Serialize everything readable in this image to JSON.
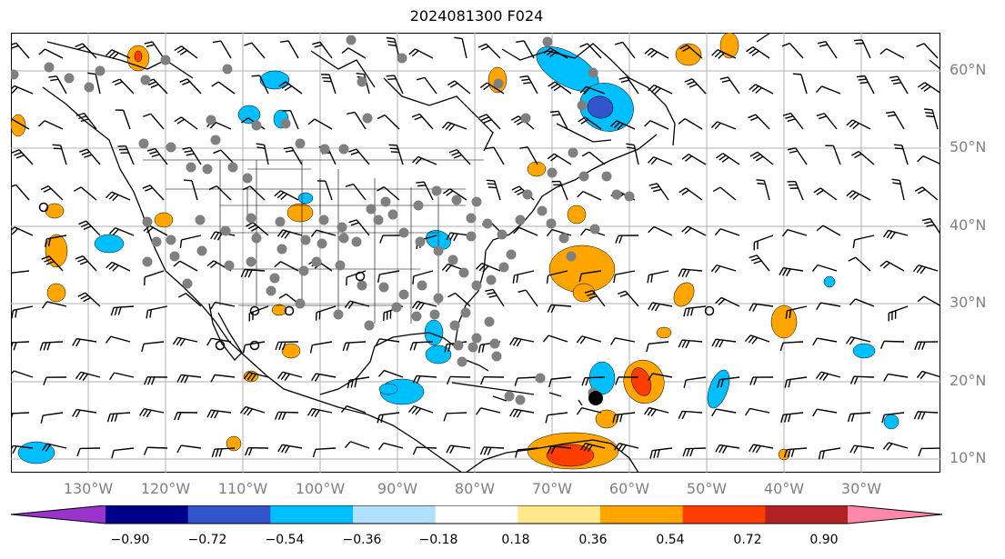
{
  "title": "2024081300 F024",
  "lat_labels": [
    "60°N",
    "50°N",
    "40°N",
    "30°N",
    "20°N",
    "10°N"
  ],
  "lon_labels": [
    "130°W",
    "120°W",
    "110°W",
    "100°W",
    "90°W",
    "80°W",
    "70°W",
    "60°W",
    "50°W",
    "40°W",
    "30°W"
  ],
  "colorbar": {
    "ticks": [
      "−0.90",
      "−0.72",
      "−0.54",
      "−0.36",
      "−0.18",
      "0.18",
      "0.36",
      "0.54",
      "0.72",
      "0.90"
    ],
    "colors": [
      "#9933cc",
      "#00008b",
      "#3355cc",
      "#00bfff",
      "#b0e0ff",
      "#ffffff",
      "#ffe88a",
      "#ffa500",
      "#ff3d00",
      "#b22222",
      "#ff88aa"
    ]
  },
  "colors": {
    "orange": "#ffa500",
    "red": "#ff3d00",
    "cyan": "#00bfff",
    "blue": "#3355cc",
    "grey_marker": "#808080",
    "storm_marker": "#000000"
  }
}
